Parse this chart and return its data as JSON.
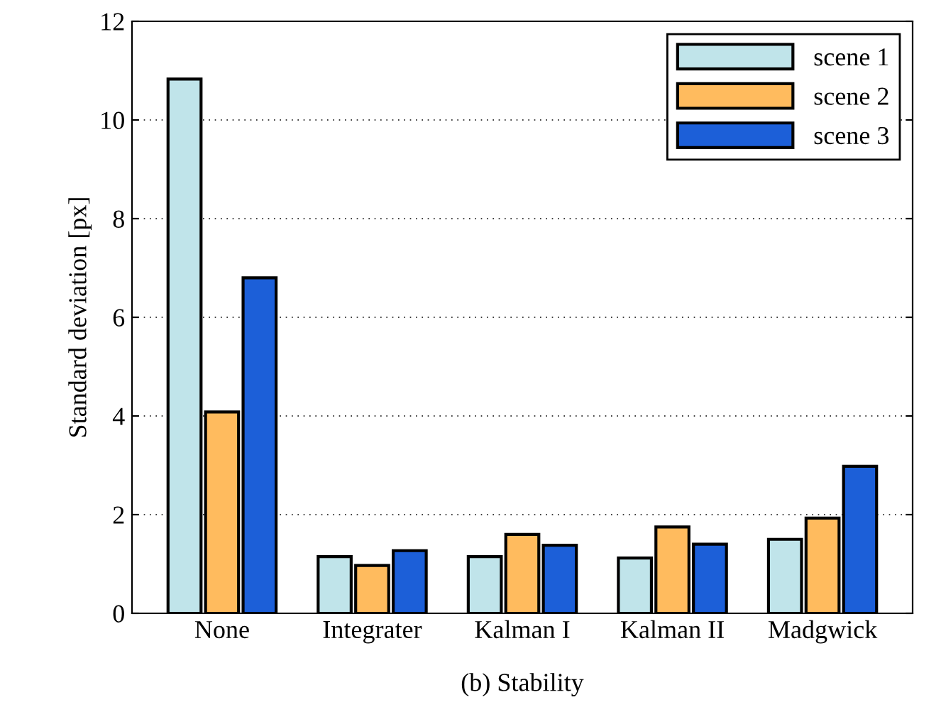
{
  "chart_data": {
    "type": "bar",
    "ylabel": "Standard deviation [px]",
    "annotations": [
      "(b) Stability"
    ],
    "categories": [
      "None",
      "Integrater",
      "Kalman I",
      "Kalman II",
      "Madgwick"
    ],
    "series": [
      {
        "name": "scene 1",
        "color": "#c0e4ea",
        "values": [
          10.83,
          1.15,
          1.15,
          1.12,
          1.5
        ]
      },
      {
        "name": "scene 2",
        "color": "#ffbb5e",
        "values": [
          4.08,
          0.97,
          1.6,
          1.75,
          1.93
        ]
      },
      {
        "name": "scene 3",
        "color": "#1c5fd8",
        "values": [
          6.8,
          1.27,
          1.38,
          1.4,
          2.98
        ]
      }
    ],
    "ylim": [
      0,
      12
    ],
    "yticks": [
      0,
      2,
      4,
      6,
      8,
      10,
      12
    ],
    "grid": "y",
    "legend": "top right"
  }
}
